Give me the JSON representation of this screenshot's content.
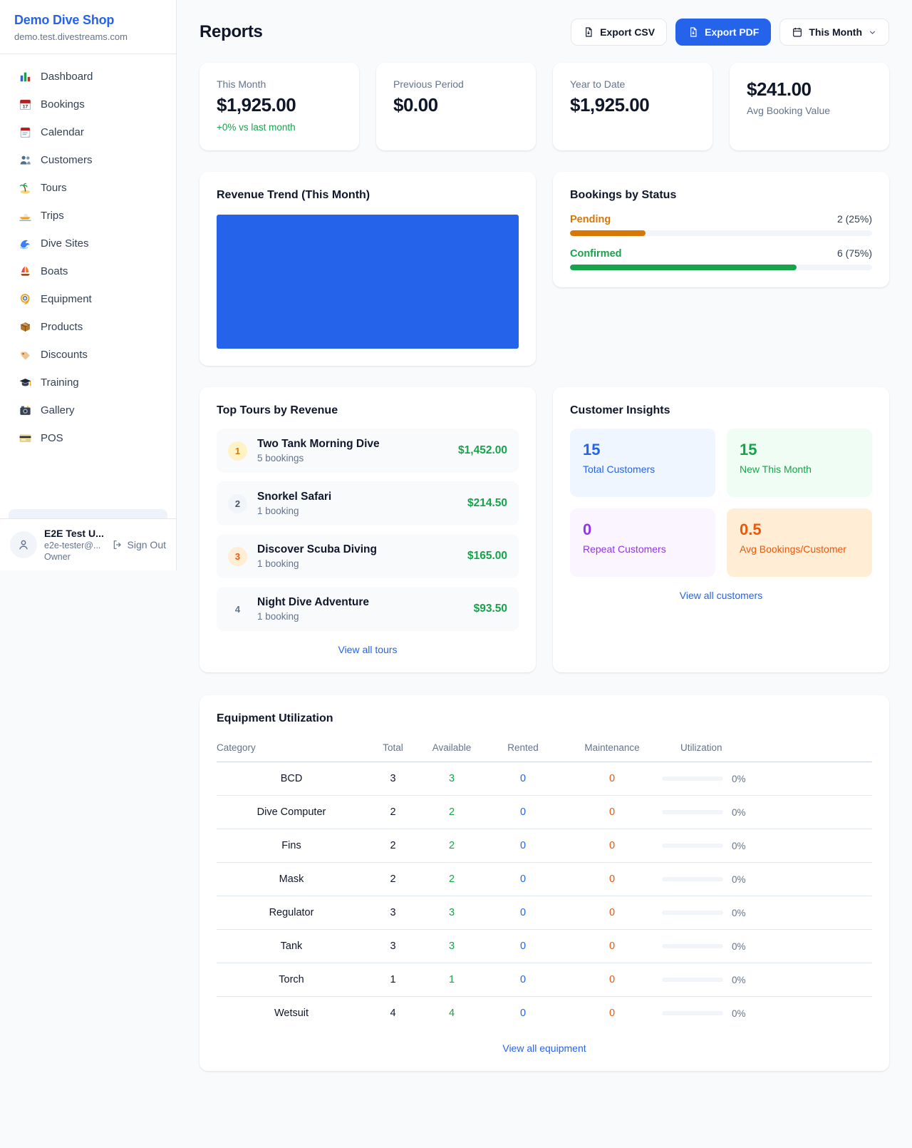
{
  "colors": {
    "accent_blue": "#2563eb",
    "green": "#16a34a",
    "amber": "#d97706",
    "orange": "#ea580c",
    "purple": "#9333ea",
    "muted": "#64748b"
  },
  "sidebar": {
    "title": "Demo Dive Shop",
    "subdomain": "demo.test.divestreams.com",
    "items": [
      {
        "icon": "bar-chart",
        "label": "Dashboard"
      },
      {
        "icon": "calendar-17",
        "label": "Bookings"
      },
      {
        "icon": "calendar-pad",
        "label": "Calendar"
      },
      {
        "icon": "people",
        "label": "Customers"
      },
      {
        "icon": "island",
        "label": "Tours"
      },
      {
        "icon": "speedboat",
        "label": "Trips"
      },
      {
        "icon": "wave",
        "label": "Dive Sites"
      },
      {
        "icon": "sailboat",
        "label": "Boats"
      },
      {
        "icon": "dive-mask",
        "label": "Equipment"
      },
      {
        "icon": "box",
        "label": "Products"
      },
      {
        "icon": "tag",
        "label": "Discounts"
      },
      {
        "icon": "grad-cap",
        "label": "Training"
      },
      {
        "icon": "camera",
        "label": "Gallery"
      },
      {
        "icon": "credit-card",
        "label": "POS"
      }
    ],
    "user": {
      "name": "E2E Test U...",
      "email": "e2e-tester@...",
      "role": "Owner",
      "sign_out": "Sign Out"
    }
  },
  "header": {
    "title": "Reports",
    "export_csv": "Export CSV",
    "export_pdf": "Export PDF",
    "period": "This Month"
  },
  "stats": [
    {
      "label": "This Month",
      "value": "$1,925.00",
      "delta": "+0% vs last month"
    },
    {
      "label": "Previous Period",
      "value": "$0.00"
    },
    {
      "label": "Year to Date",
      "value": "$1,925.00"
    },
    {
      "label": "Avg Booking Value",
      "value": "$241.00"
    }
  ],
  "revenue_trend": {
    "title": "Revenue Trend (This Month)",
    "bar_color": "#2563eb"
  },
  "chart_data": [
    {
      "type": "bar",
      "title": "Revenue Trend (This Month)",
      "categories": [
        "This Month"
      ],
      "values": [
        1925
      ],
      "xlabel": "",
      "ylabel": "",
      "notes": "single full-width solid blue bar, no visible axes or gridlines"
    },
    {
      "type": "bar",
      "title": "Bookings by Status",
      "categories": [
        "Pending",
        "Confirmed"
      ],
      "values": [
        2,
        6
      ],
      "percentages": [
        25,
        75
      ],
      "notes": "horizontal progress bars; pending amber, confirmed green"
    }
  ],
  "bookings_by_status": {
    "title": "Bookings by Status",
    "rows": [
      {
        "label": "Pending",
        "value": "2 (25%)",
        "pct": 25,
        "color": "#d97706"
      },
      {
        "label": "Confirmed",
        "value": "6 (75%)",
        "pct": 75,
        "color": "#16a34a"
      }
    ]
  },
  "top_tours": {
    "title": "Top Tours by Revenue",
    "rows": [
      {
        "rank": "1",
        "name": "Two Tank Morning Dive",
        "bookings": "5 bookings",
        "amount": "$1,452.00",
        "badge_bg": "#fef3c7",
        "badge_color": "#d97706"
      },
      {
        "rank": "2",
        "name": "Snorkel Safari",
        "bookings": "1 booking",
        "amount": "$214.50",
        "badge_bg": "#f1f5f9",
        "badge_color": "#475569"
      },
      {
        "rank": "3",
        "name": "Discover Scuba Diving",
        "bookings": "1 booking",
        "amount": "$165.00",
        "badge_bg": "#ffedd5",
        "badge_color": "#ea580c"
      },
      {
        "rank": "4",
        "name": "Night Dive Adventure",
        "bookings": "1 booking",
        "amount": "$93.50",
        "badge_bg": "transparent",
        "badge_color": "#64748b"
      }
    ],
    "link": "View all tours"
  },
  "customer_insights": {
    "title": "Customer Insights",
    "tiles": [
      {
        "value": "15",
        "label": "Total Customers",
        "bg": "#eff6ff",
        "value_color": "#2563eb",
        "label_color": "#2563eb"
      },
      {
        "value": "15",
        "label": "New This Month",
        "bg": "#f0fdf4",
        "value_color": "#16a34a",
        "label_color": "#16a34a"
      },
      {
        "value": "0",
        "label": "Repeat Customers",
        "bg": "#faf5ff",
        "value_color": "#9333ea",
        "label_color": "#9333ea"
      },
      {
        "value": "0.5",
        "label": "Avg Bookings/Customer",
        "bg": "#ffedd5",
        "value_color": "#ea580c",
        "label_color": "#ea580c"
      }
    ],
    "link": "View all customers"
  },
  "equipment": {
    "title": "Equipment Utilization",
    "columns": [
      "Category",
      "Total",
      "Available",
      "Rented",
      "Maintenance",
      "Utilization"
    ],
    "rows": [
      {
        "category": "BCD",
        "total": "3",
        "available": "3",
        "rented": "0",
        "maintenance": "0",
        "utilization": "0%"
      },
      {
        "category": "Dive Computer",
        "total": "2",
        "available": "2",
        "rented": "0",
        "maintenance": "0",
        "utilization": "0%"
      },
      {
        "category": "Fins",
        "total": "2",
        "available": "2",
        "rented": "0",
        "maintenance": "0",
        "utilization": "0%"
      },
      {
        "category": "Mask",
        "total": "2",
        "available": "2",
        "rented": "0",
        "maintenance": "0",
        "utilization": "0%"
      },
      {
        "category": "Regulator",
        "total": "3",
        "available": "3",
        "rented": "0",
        "maintenance": "0",
        "utilization": "0%"
      },
      {
        "category": "Tank",
        "total": "3",
        "available": "3",
        "rented": "0",
        "maintenance": "0",
        "utilization": "0%"
      },
      {
        "category": "Torch",
        "total": "1",
        "available": "1",
        "rented": "0",
        "maintenance": "0",
        "utilization": "0%"
      },
      {
        "category": "Wetsuit",
        "total": "4",
        "available": "4",
        "rented": "0",
        "maintenance": "0",
        "utilization": "0%"
      }
    ],
    "link": "View all equipment"
  }
}
